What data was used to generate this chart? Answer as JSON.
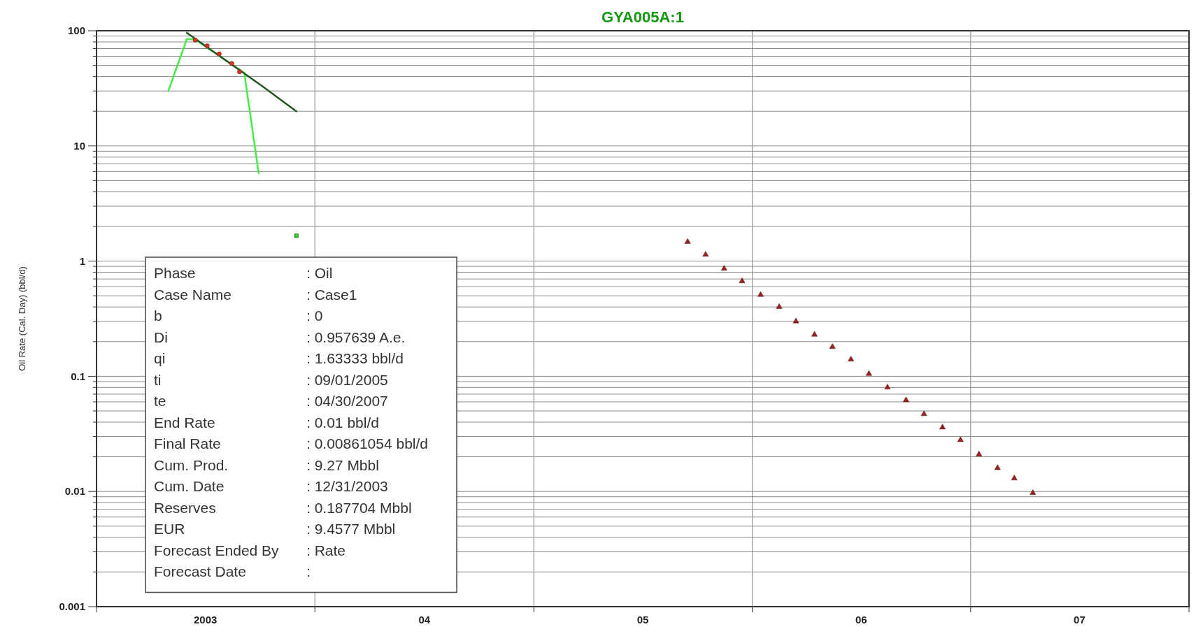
{
  "chart_data": {
    "type": "line",
    "title": "GYA005A:1",
    "ylabel": "Oil Rate (Cal. Day) (bbl/d)",
    "log": "y",
    "grid": true,
    "xlim": [
      "2003-01-01",
      "2008-01-01"
    ],
    "xticks": [
      {
        "value": "2003-01-01",
        "label": null
      },
      {
        "value": "2003-07-02",
        "label": "2003"
      },
      {
        "value": "2004-01-01",
        "label": null
      },
      {
        "value": "2004-07-02",
        "label": "04"
      },
      {
        "value": "2005-01-01",
        "label": null
      },
      {
        "value": "2005-07-02",
        "label": "05"
      },
      {
        "value": "2006-01-01",
        "label": null
      },
      {
        "value": "2006-07-02",
        "label": "06"
      },
      {
        "value": "2007-01-01",
        "label": null
      },
      {
        "value": "2007-07-02",
        "label": "07"
      },
      {
        "value": "2008-01-01",
        "label": null
      }
    ],
    "ylim": [
      0.001,
      100
    ],
    "yticks": [
      {
        "value": 0.001,
        "label": "0.001"
      },
      {
        "value": 0.002,
        "label": null
      },
      {
        "value": 0.003,
        "label": null
      },
      {
        "value": 0.004,
        "label": null
      },
      {
        "value": 0.005,
        "label": null
      },
      {
        "value": 0.006,
        "label": null
      },
      {
        "value": 0.007,
        "label": null
      },
      {
        "value": 0.008,
        "label": null
      },
      {
        "value": 0.009,
        "label": null
      },
      {
        "value": 0.01,
        "label": "0.01"
      },
      {
        "value": 0.02,
        "label": null
      },
      {
        "value": 0.03,
        "label": null
      },
      {
        "value": 0.04,
        "label": null
      },
      {
        "value": 0.05,
        "label": null
      },
      {
        "value": 0.06,
        "label": null
      },
      {
        "value": 0.07,
        "label": null
      },
      {
        "value": 0.08,
        "label": null
      },
      {
        "value": 0.09,
        "label": null
      },
      {
        "value": 0.1,
        "label": "0.1"
      },
      {
        "value": 0.2,
        "label": null
      },
      {
        "value": 0.3,
        "label": null
      },
      {
        "value": 0.4,
        "label": null
      },
      {
        "value": 0.5,
        "label": null
      },
      {
        "value": 0.6,
        "label": null
      },
      {
        "value": 0.7,
        "label": null
      },
      {
        "value": 0.8,
        "label": null
      },
      {
        "value": 0.9,
        "label": null
      },
      1,
      {
        "value": 2,
        "label": null
      },
      {
        "value": 3,
        "label": null
      },
      {
        "value": 4,
        "label": null
      },
      {
        "value": 5,
        "label": null
      },
      {
        "value": 6,
        "label": null
      },
      {
        "value": 7,
        "label": null
      },
      {
        "value": 8,
        "label": null
      },
      {
        "value": 9,
        "label": null
      },
      10,
      {
        "value": 20,
        "label": null
      },
      {
        "value": 30,
        "label": null
      },
      {
        "value": 40,
        "label": null
      },
      {
        "value": 50,
        "label": null
      },
      {
        "value": 60,
        "label": null
      },
      {
        "value": 70,
        "label": null
      },
      {
        "value": 80,
        "label": null
      },
      {
        "value": 90,
        "label": null
      },
      100
    ],
    "series": [
      {
        "color": "#44ee44",
        "marker": "none",
        "x": [
          "2003-05-01",
          "2003-06-01",
          "2003-06-15",
          "2003-09-05",
          "2003-09-29"
        ],
        "values": [
          30,
          85,
          84,
          43,
          5.8
        ]
      },
      {
        "color": "#225522",
        "marker": "none",
        "x": [
          "2003-06-01",
          "2003-10-05",
          "2003-12-01"
        ],
        "values": [
          96,
          33,
          20
        ]
      },
      {
        "type": "scatter",
        "color": "#dd3322",
        "marker": "circle",
        "x": [
          "2003-06-15",
          "2003-07-05",
          "2003-07-25",
          "2003-08-15",
          "2003-08-28"
        ],
        "values": [
          83,
          74,
          63,
          52,
          44
        ]
      },
      {
        "type": "scatter",
        "color": "#22dd22",
        "marker": "square",
        "x": [
          "2003-12-01"
        ],
        "values": [
          1.66
        ]
      },
      {
        "type": "scatter",
        "color": "#992222",
        "marker": "triangle",
        "x": [
          "2005-09-15",
          "2005-10-15",
          "2005-11-15",
          "2005-12-15",
          "2006-01-15",
          "2006-02-15",
          "2006-03-15",
          "2006-04-15",
          "2006-05-15",
          "2006-06-15",
          "2006-07-15",
          "2006-08-15",
          "2006-09-15",
          "2006-10-15",
          "2006-11-15",
          "2006-12-15",
          "2007-01-15",
          "2007-02-15",
          "2007-03-15",
          "2007-04-15"
        ],
        "values": [
          1.47,
          1.14,
          0.86,
          0.67,
          0.51,
          0.4,
          0.3,
          0.23,
          0.18,
          0.14,
          0.105,
          0.08,
          0.062,
          0.047,
          0.036,
          0.028,
          0.021,
          0.016,
          0.013,
          0.0097
        ]
      }
    ],
    "annotations": [
      "Phase : Oil",
      "Case Name : Case1",
      "b : 0",
      "Di : 0.957639 A.e.",
      "qi : 1.63333 bbl/d",
      "ti : 09/01/2005",
      "te : 04/30/2007",
      "End Rate : 0.01 bbl/d",
      "Final Rate : 0.00861054 bbl/d",
      "Cum. Prod. : 9.27 Mbbl",
      "Cum. Date : 12/31/2003",
      "Reserves : 0.187704 Mbbl",
      "EUR : 9.4577 Mbbl",
      "Forecast Ended By : Rate",
      "Forecast Date :"
    ]
  }
}
